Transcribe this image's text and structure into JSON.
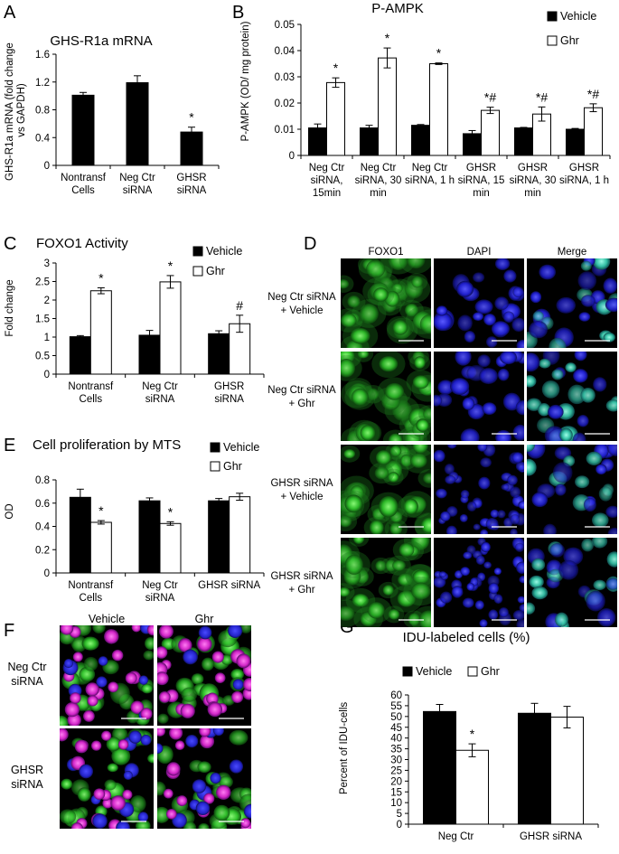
{
  "figure": {
    "colors": {
      "vehicle": "#000000",
      "ghr": "#ffffff",
      "axis": "#000000"
    }
  },
  "panels": {
    "A": {
      "letter": "A",
      "chart_data": {
        "type": "bar",
        "title": "GHS-R1a mRNA",
        "ylabel": "GHS-R1a mRNA (fold change vs GAPDH)",
        "ylabel_lines": [
          "GHS-R1a mRNA (fold change",
          "vs GAPDH)"
        ],
        "ylim": [
          0,
          1.6
        ],
        "yticks": [
          "0",
          "0.4",
          "0.8",
          "1.2",
          "1.6"
        ],
        "categories": [
          [
            "Nontransf",
            "Cells"
          ],
          [
            "Neg Ctr",
            "siRNA"
          ],
          [
            "GHSR",
            "siRNA"
          ]
        ],
        "series": [
          {
            "values": [
              1.01,
              1.19,
              0.48
            ],
            "errors": [
              0.04,
              0.1,
              0.07
            ],
            "color": "#000000"
          }
        ],
        "annotations": [
          "",
          "",
          "*"
        ]
      }
    },
    "B": {
      "letter": "B",
      "chart_data": {
        "type": "bar",
        "title": "P-AMPK",
        "ylabel": "P-AMPK (OD/ mg protein)",
        "ylim": [
          0,
          0.05
        ],
        "yticks": [
          "0",
          "0.01",
          "0.02",
          "0.03",
          "0.04",
          "0.05"
        ],
        "legend": {
          "placement": "top-right",
          "entries": [
            "Vehicle",
            "Ghr"
          ]
        },
        "categories": [
          [
            "Neg Ctr",
            "siRNA,",
            "15min"
          ],
          [
            "Neg Ctr",
            "siRNA, 30",
            "min"
          ],
          [
            "Neg Ctr",
            "siRNA, 1 h"
          ],
          [
            "GHSR",
            "siRNA, 15",
            "min"
          ],
          [
            "GHSR",
            "siRNA, 30",
            "min"
          ],
          [
            "GHSR",
            "siRNA, 1 h"
          ]
        ],
        "series": [
          {
            "name": "Vehicle",
            "values": [
              0.0105,
              0.0105,
              0.0115,
              0.0083,
              0.0105,
              0.01
            ],
            "errors": [
              0.0015,
              0.001,
              0.0003,
              0.0012,
              0.0002,
              0.0003
            ],
            "color": "#000000"
          },
          {
            "name": "Ghr",
            "values": [
              0.0278,
              0.0372,
              0.035,
              0.0172,
              0.0158,
              0.0182
            ],
            "errors": [
              0.0018,
              0.0038,
              0.0003,
              0.0012,
              0.0027,
              0.0015
            ],
            "color": "#ffffff"
          }
        ],
        "annotations": [
          "*",
          "*",
          "*",
          "*#",
          "*#",
          "*#"
        ]
      }
    },
    "C": {
      "letter": "C",
      "chart_data": {
        "type": "bar",
        "title": "FOXO1 Activity",
        "ylabel": "Fold change",
        "ylim": [
          0,
          3
        ],
        "yticks": [
          "0",
          "0.5",
          "1",
          "1.5",
          "2",
          "2.5",
          "3"
        ],
        "legend": {
          "placement": "top-right",
          "entries": [
            "Vehicle",
            "Ghr"
          ]
        },
        "categories": [
          [
            "Nontransf",
            "Cells"
          ],
          [
            "Neg Ctr",
            "siRNA"
          ],
          [
            "GHSR",
            "siRNA"
          ]
        ],
        "series": [
          {
            "name": "Vehicle",
            "values": [
              1.01,
              1.05,
              1.09
            ],
            "errors": [
              0.03,
              0.13,
              0.08
            ],
            "color": "#000000"
          },
          {
            "name": "Ghr",
            "values": [
              2.25,
              2.49,
              1.36
            ],
            "errors": [
              0.08,
              0.17,
              0.23
            ],
            "color": "#ffffff"
          }
        ],
        "annotations": [
          "*",
          "*",
          "#"
        ]
      }
    },
    "D": {
      "letter": "D",
      "columns": [
        "FOXO1",
        "DAPI",
        "Merge"
      ],
      "rows": [
        [
          "Neg Ctr siRNA",
          "+ Vehicle"
        ],
        [
          "Neg Ctr siRNA",
          "+ Ghr"
        ],
        [
          "GHSR siRNA",
          "+ Vehicle"
        ],
        [
          "GHSR siRNA",
          "+ Ghr"
        ]
      ]
    },
    "E": {
      "letter": "E",
      "chart_data": {
        "type": "bar",
        "title": "Cell proliferation by MTS",
        "ylabel": "OD",
        "ylim": [
          0,
          0.8
        ],
        "yticks": [
          "0",
          "0.2",
          "0.4",
          "0.6",
          "0.8"
        ],
        "legend": {
          "placement": "top-right",
          "entries": [
            "Vehicle",
            "Ghr"
          ]
        },
        "categories": [
          [
            "Nontransf",
            "Cells"
          ],
          [
            "Neg Ctr",
            "siRNA"
          ],
          [
            "GHSR siRNA"
          ]
        ],
        "series": [
          {
            "name": "Vehicle",
            "values": [
              0.65,
              0.62,
              0.62
            ],
            "errors": [
              0.07,
              0.025,
              0.02
            ],
            "color": "#000000"
          },
          {
            "name": "Ghr",
            "values": [
              0.435,
              0.425,
              0.655
            ],
            "errors": [
              0.015,
              0.015,
              0.03
            ],
            "color": "#ffffff"
          }
        ],
        "annotations": [
          "*",
          "*",
          ""
        ]
      }
    },
    "F": {
      "letter": "F",
      "columns": [
        "Vehicle",
        "Ghr"
      ],
      "rows": [
        [
          "Neg Ctr",
          "siRNA"
        ],
        [
          "GHSR",
          "siRNA"
        ]
      ]
    },
    "G": {
      "letter": "G",
      "chart_data": {
        "type": "bar",
        "title": "IDU-labeled cells (%)",
        "ylabel": "Percent of IDU-cells",
        "ylim": [
          0,
          60
        ],
        "yticks": [
          "0",
          "5",
          "10",
          "15",
          "20",
          "25",
          "30",
          "35",
          "40",
          "45",
          "50",
          "55",
          "60"
        ],
        "legend": {
          "placement": "top",
          "entries": [
            "Vehicle",
            "Ghr"
          ]
        },
        "categories": [
          [
            "Neg Ctr"
          ],
          [
            "GHSR siRNA"
          ]
        ],
        "series": [
          {
            "name": "Vehicle",
            "values": [
              52.3,
              51.5
            ],
            "errors": [
              3.3,
              4.6
            ],
            "color": "#000000"
          },
          {
            "name": "Ghr",
            "values": [
              34.3,
              49.7
            ],
            "errors": [
              3.0,
              5.0
            ],
            "color": "#ffffff"
          }
        ],
        "annotations": [
          "*",
          ""
        ]
      }
    }
  }
}
